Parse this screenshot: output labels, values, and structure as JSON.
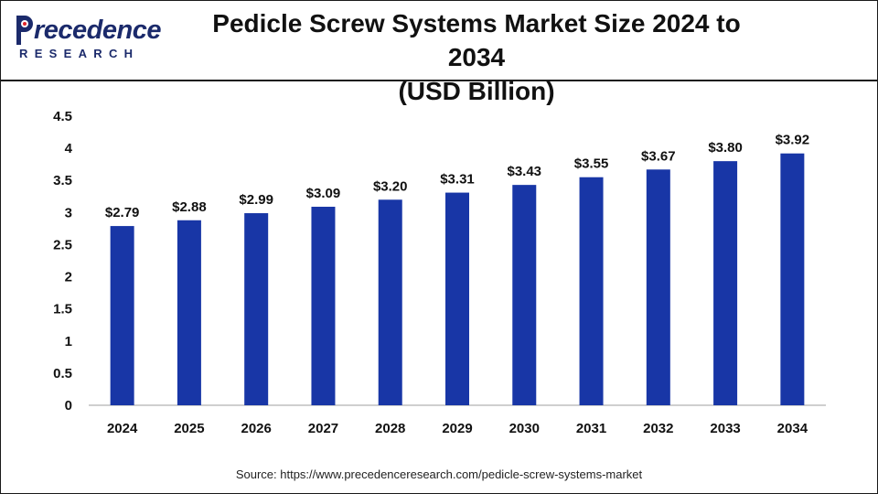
{
  "brand": {
    "name_main": "recedence",
    "name_sub": "RESEARCH"
  },
  "title_line1": "Pedicle Screw Systems Market Size 2024 to 2034",
  "title_line2": "(USD Billion)",
  "source": "Source: https://www.precedenceresearch.com/pedicle-screw-systems-market",
  "colors": {
    "bar": "#1836a6",
    "axis": "#bfbfbf",
    "text": "#111111",
    "brand": "#1b2a6b"
  },
  "chart_data": {
    "type": "bar",
    "categories": [
      "2024",
      "2025",
      "2026",
      "2027",
      "2028",
      "2029",
      "2030",
      "2031",
      "2032",
      "2033",
      "2034"
    ],
    "values": [
      2.79,
      2.88,
      2.99,
      3.09,
      3.2,
      3.31,
      3.43,
      3.55,
      3.67,
      3.8,
      3.92
    ],
    "data_labels": [
      "$2.79",
      "$2.88",
      "$2.99",
      "$3.09",
      "$3.20",
      "$3.31",
      "$3.43",
      "$3.55",
      "$3.67",
      "$3.80",
      "$3.92"
    ],
    "yticks": [
      "0",
      "0.5",
      "1",
      "1.5",
      "2",
      "2.5",
      "3",
      "3.5",
      "4",
      "4.5"
    ],
    "ylim": [
      0,
      4.5
    ],
    "title": "Pedicle Screw Systems Market Size 2024 to 2034 (USD Billion)",
    "xlabel": "",
    "ylabel": "",
    "grid": false,
    "legend": "none"
  }
}
